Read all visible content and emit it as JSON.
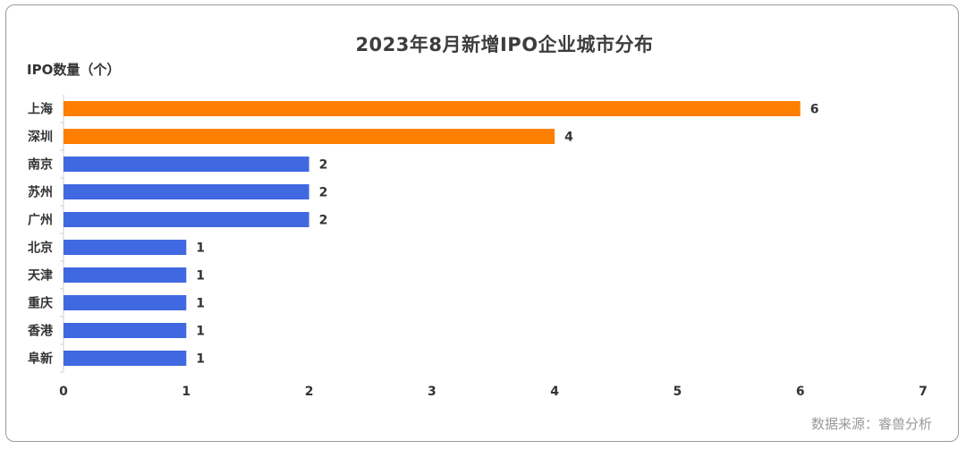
{
  "chart_data": {
    "type": "bar",
    "orientation": "horizontal",
    "title": "2023年8月新增IPO企业城市分布",
    "ylabel": "IPO数量（个）",
    "categories": [
      "上海",
      "深圳",
      "南京",
      "苏州",
      "广州",
      "北京",
      "天津",
      "重庆",
      "香港",
      "阜新"
    ],
    "values": [
      6,
      4,
      2,
      2,
      2,
      1,
      1,
      1,
      1,
      1
    ],
    "bar_colors": [
      "#fe7f00",
      "#fe7f00",
      "#4068e0",
      "#4068e0",
      "#4068e0",
      "#4068e0",
      "#4068e0",
      "#4068e0",
      "#4068e0",
      "#4068e0"
    ],
    "xlim": [
      0,
      7
    ],
    "xticks": [
      0,
      1,
      2,
      3,
      4,
      5,
      6,
      7
    ],
    "grid": false,
    "data_labels": true
  },
  "source": "数据来源：睿兽分析",
  "colors": {
    "highlight": "#fe7f00",
    "primary": "#4068e0",
    "axis": "#cfcfcf",
    "text": "#333333"
  }
}
